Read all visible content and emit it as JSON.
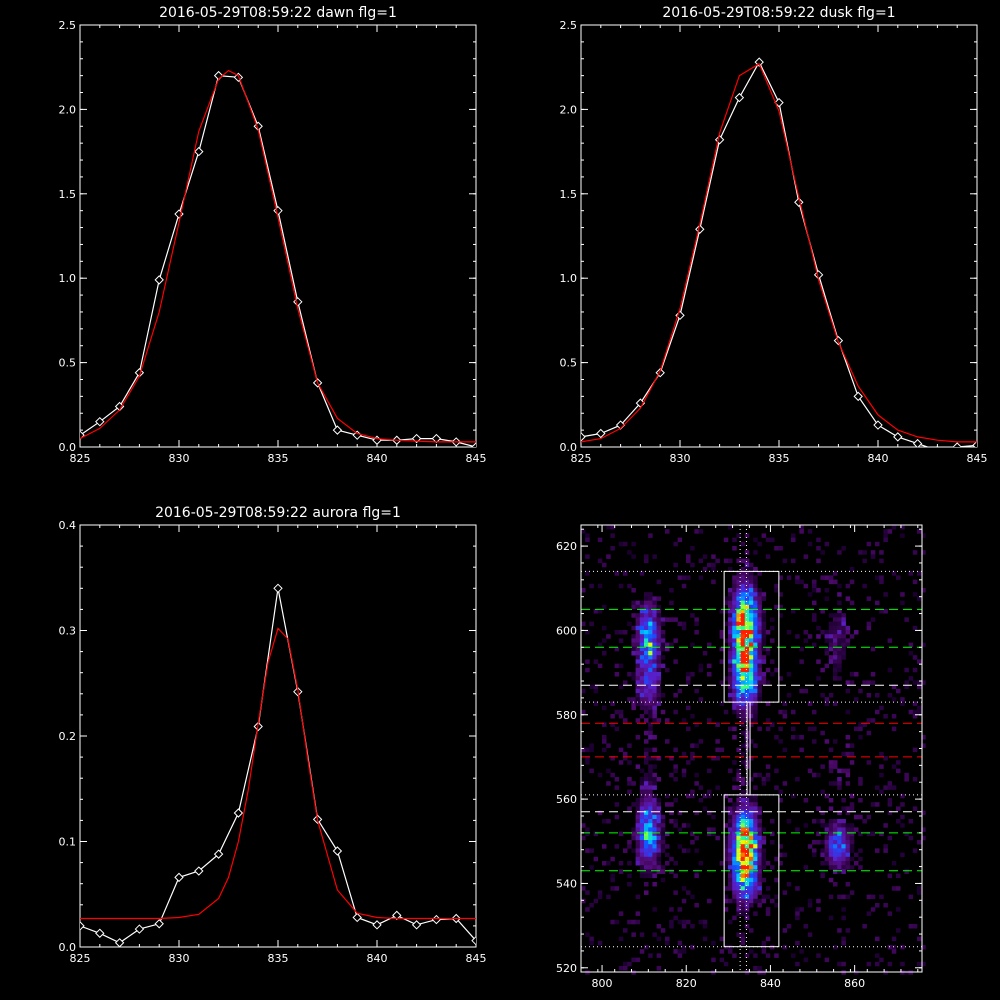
{
  "chart_data": [
    {
      "type": "line",
      "title": "2016-05-29T08:59:22 dawn flg=1",
      "xlim": [
        825,
        845
      ],
      "ylim": [
        0,
        2.5
      ],
      "xticks": [
        "825",
        "830",
        "835",
        "840",
        "845"
      ],
      "yticks": [
        "0.0",
        "0.5",
        "1.0",
        "1.5",
        "2.0",
        "2.5"
      ],
      "series": [
        {
          "color": "#ffffff",
          "marker": "diamond",
          "x": [
            825,
            826,
            827,
            828,
            829,
            830,
            831,
            832,
            833,
            834,
            835,
            836,
            837,
            838,
            839,
            840,
            841,
            842,
            843,
            844,
            845
          ],
          "y": [
            0.07,
            0.15,
            0.24,
            0.44,
            0.99,
            1.38,
            1.75,
            2.2,
            2.19,
            1.9,
            1.4,
            0.86,
            0.38,
            0.1,
            0.07,
            0.04,
            0.04,
            0.05,
            0.05,
            0.03,
            0.0
          ]
        },
        {
          "color": "#ff0000",
          "marker": "none",
          "x": [
            825,
            826,
            827,
            828,
            829,
            830,
            831,
            832,
            832.5,
            833,
            834,
            835,
            836,
            837,
            838,
            839,
            840,
            841,
            842,
            843,
            844,
            845
          ],
          "y": [
            0.05,
            0.11,
            0.22,
            0.42,
            0.8,
            1.33,
            1.87,
            2.18,
            2.23,
            2.2,
            1.88,
            1.36,
            0.82,
            0.38,
            0.17,
            0.08,
            0.05,
            0.04,
            0.035,
            0.03,
            0.03,
            0.03
          ]
        }
      ]
    },
    {
      "type": "line",
      "title": "2016-05-29T08:59:22 dusk flg=1",
      "xlim": [
        825,
        845
      ],
      "ylim": [
        0,
        2.5
      ],
      "xticks": [
        "825",
        "830",
        "835",
        "840",
        "845"
      ],
      "yticks": [
        "0.0",
        "0.5",
        "1.0",
        "1.5",
        "2.0",
        "2.5"
      ],
      "series": [
        {
          "color": "#ffffff",
          "marker": "diamond",
          "x": [
            825,
            826,
            827,
            828,
            829,
            830,
            831,
            832,
            833,
            834,
            835,
            836,
            837,
            838,
            839,
            840,
            841,
            842,
            843,
            844,
            845
          ],
          "y": [
            0.06,
            0.08,
            0.13,
            0.26,
            0.44,
            0.78,
            1.29,
            1.82,
            2.07,
            2.28,
            2.04,
            1.45,
            1.02,
            0.63,
            0.3,
            0.13,
            0.06,
            0.02,
            -0.02,
            0.0,
            0.01
          ]
        },
        {
          "color": "#ff0000",
          "marker": "none",
          "x": [
            825,
            826,
            827,
            828,
            829,
            830,
            831,
            832,
            833,
            834,
            835,
            836,
            837,
            838,
            839,
            840,
            841,
            842,
            843,
            844,
            845
          ],
          "y": [
            0.03,
            0.05,
            0.11,
            0.23,
            0.45,
            0.82,
            1.32,
            1.86,
            2.2,
            2.27,
            1.99,
            1.48,
            0.99,
            0.62,
            0.36,
            0.19,
            0.1,
            0.06,
            0.04,
            0.03,
            0.03
          ]
        }
      ]
    },
    {
      "type": "line",
      "title": "2016-05-29T08:59:22 aurora flg=1",
      "xlim": [
        825,
        845
      ],
      "ylim": [
        0,
        0.4
      ],
      "xticks": [
        "825",
        "830",
        "835",
        "840",
        "845"
      ],
      "yticks": [
        "0.0",
        "0.1",
        "0.2",
        "0.3",
        "0.4"
      ],
      "series": [
        {
          "color": "#ffffff",
          "marker": "diamond",
          "x": [
            825,
            826,
            827,
            828,
            829,
            830,
            831,
            832,
            833,
            834,
            835,
            836,
            837,
            838,
            839,
            840,
            841,
            842,
            843,
            844,
            845
          ],
          "y": [
            0.02,
            0.013,
            0.004,
            0.017,
            0.022,
            0.066,
            0.072,
            0.088,
            0.127,
            0.209,
            0.34,
            0.242,
            0.121,
            0.091,
            0.028,
            0.021,
            0.03,
            0.021,
            0.026,
            0.027,
            0.006
          ]
        },
        {
          "color": "#ff0000",
          "marker": "none",
          "x": [
            825,
            826,
            827,
            828,
            829,
            830,
            831,
            832,
            832.5,
            833,
            833.5,
            834,
            834.5,
            835,
            835.5,
            836,
            836.5,
            837,
            838,
            839,
            840,
            841,
            842,
            843,
            844,
            845
          ],
          "y": [
            0.027,
            0.027,
            0.027,
            0.027,
            0.027,
            0.028,
            0.031,
            0.046,
            0.066,
            0.1,
            0.149,
            0.212,
            0.27,
            0.302,
            0.292,
            0.244,
            0.179,
            0.12,
            0.054,
            0.032,
            0.028,
            0.027,
            0.027,
            0.027,
            0.027,
            0.027
          ]
        }
      ]
    },
    {
      "type": "heatmap",
      "xlim": [
        795,
        876
      ],
      "ylim": [
        519,
        625
      ],
      "xticks": [
        "800",
        "820",
        "840",
        "860"
      ],
      "yticks": [
        "520",
        "540",
        "560",
        "580",
        "600",
        "620"
      ],
      "spots": [
        {
          "x": 811,
          "y": 598,
          "sx": 2,
          "sy": 6,
          "peak": 0.6
        },
        {
          "x": 811,
          "y": 586,
          "sx": 2,
          "sy": 4,
          "peak": 0.32
        },
        {
          "x": 811,
          "y": 552,
          "sx": 2,
          "sy": 6,
          "peak": 0.62
        },
        {
          "x": 811,
          "y": 570,
          "sx": 2,
          "sy": 5,
          "peak": 0.13
        },
        {
          "x": 834,
          "y": 601,
          "sx": 2.2,
          "sy": 7,
          "peak": 1.0
        },
        {
          "x": 834,
          "y": 588,
          "sx": 2.2,
          "sy": 5,
          "peak": 0.6
        },
        {
          "x": 834,
          "y": 549,
          "sx": 2.2,
          "sy": 6,
          "peak": 1.0
        },
        {
          "x": 834,
          "y": 540,
          "sx": 2.2,
          "sy": 4,
          "peak": 0.4
        },
        {
          "x": 834,
          "y": 572,
          "sx": 1.5,
          "sy": 6,
          "peak": 0.12
        },
        {
          "x": 856,
          "y": 549,
          "sx": 2.2,
          "sy": 4,
          "peak": 0.5
        },
        {
          "x": 856,
          "y": 598,
          "sx": 2.5,
          "sy": 8,
          "peak": 0.2
        },
        {
          "x": 856,
          "y": 568,
          "sx": 2.5,
          "sy": 6,
          "peak": 0.1
        }
      ],
      "hlines": [
        {
          "y": 614,
          "color": "#ffffff",
          "style": "dotted"
        },
        {
          "y": 605,
          "color": "#00ff00",
          "style": "dashed"
        },
        {
          "y": 596,
          "color": "#00ff00",
          "style": "dashed"
        },
        {
          "y": 587,
          "color": "#ffffff",
          "style": "dashed"
        },
        {
          "y": 583,
          "color": "#ffffff",
          "style": "dotted"
        },
        {
          "y": 578,
          "color": "#ff0000",
          "style": "dashed"
        },
        {
          "y": 570,
          "color": "#ff0000",
          "style": "dashed"
        },
        {
          "y": 561,
          "color": "#ffffff",
          "style": "dotted"
        },
        {
          "y": 557,
          "color": "#ffffff",
          "style": "dashed"
        },
        {
          "y": 552,
          "color": "#00ff00",
          "style": "dashed"
        },
        {
          "y": 543,
          "color": "#00ff00",
          "style": "dashed"
        },
        {
          "y": 525,
          "color": "#ffffff",
          "style": "dotted"
        }
      ],
      "vlines": [
        {
          "x": 832.8,
          "color": "#ffffff",
          "style": "dotted"
        },
        {
          "x": 834.3,
          "color": "#ffffff",
          "style": "dotted"
        }
      ],
      "boxes": [
        {
          "x0": 829,
          "x1": 842,
          "y0": 583,
          "y1": 614
        },
        {
          "x0": 829,
          "x1": 842,
          "y0": 525,
          "y1": 561
        }
      ],
      "connector": {
        "x": 834.8,
        "y0": 561,
        "y1": 583
      }
    }
  ]
}
